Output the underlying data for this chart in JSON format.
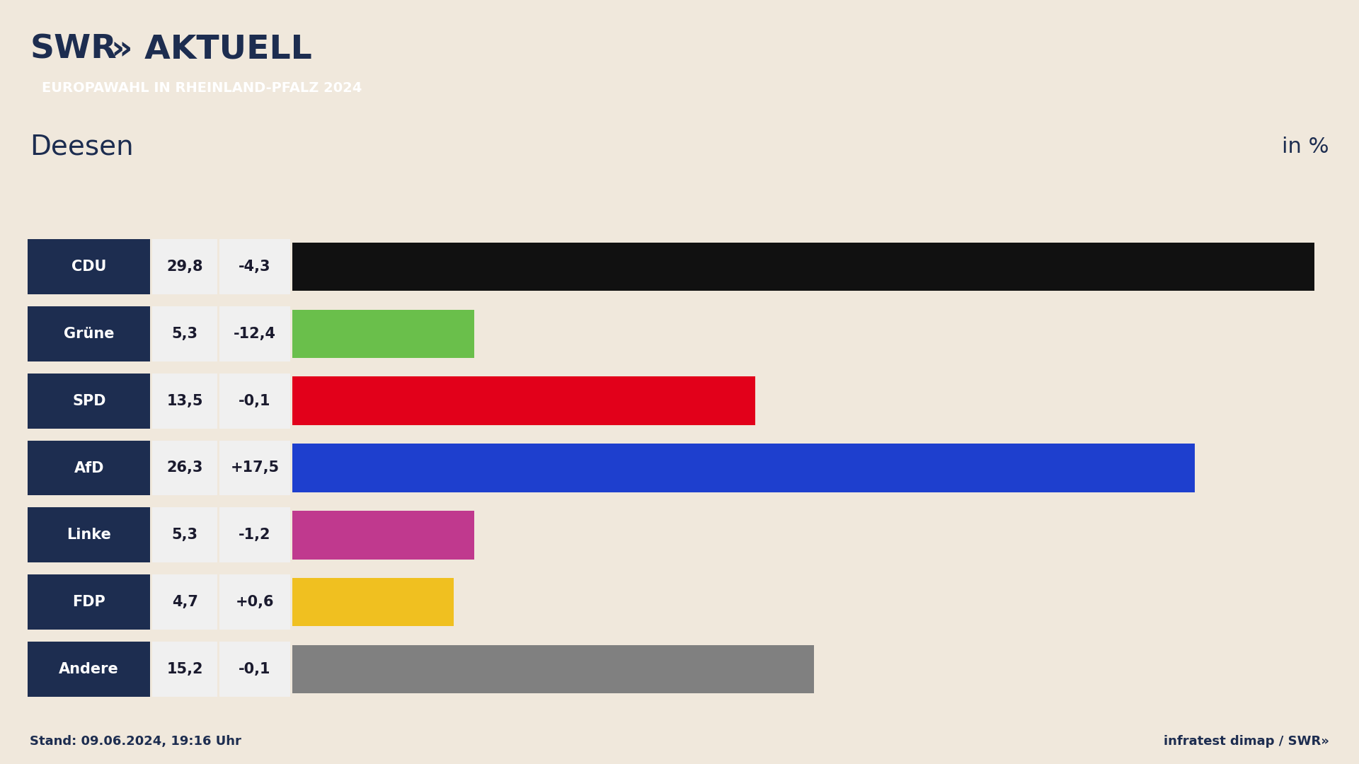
{
  "bg_color": "#f0e8dc",
  "title_location": "Deesen",
  "subtitle": "EUROPAWAHL IN RHEINLAND-PFALZ 2024",
  "subtitle_bg": "#e8503a",
  "subtitle_fg": "#ffffff",
  "in_percent_label": "in %",
  "swr_text1": "SWR",
  "swr_text2": "» AKTUELL",
  "stand_label": "Stand: 09.06.2024, 19:16 Uhr",
  "infratest_label": "infratest dimap / SWR»",
  "parties": [
    "CDU",
    "Grüne",
    "SPD",
    "AfD",
    "Linke",
    "FDP",
    "Andere"
  ],
  "values": [
    29.8,
    5.3,
    13.5,
    26.3,
    5.3,
    4.7,
    15.2
  ],
  "values_display": [
    "29,8",
    "5,3",
    "13,5",
    "26,3",
    "5,3",
    "4,7",
    "15,2"
  ],
  "changes": [
    "-4,3",
    "-12,4",
    "-0,1",
    "+17,5",
    "-1,2",
    "+0,6",
    "-0,1"
  ],
  "bar_colors": [
    "#111111",
    "#6abf4b",
    "#e2001a",
    "#1e3fce",
    "#c0398e",
    "#f0c020",
    "#808080"
  ],
  "party_box_color": "#1d2d50",
  "party_text_color": "#ffffff",
  "value_box_color": "#f0f0f0",
  "value_text_color": "#1a1a2e",
  "header_color": "#1d2d50",
  "footer_color": "#1d2d50",
  "location_color": "#1d2d50",
  "max_value": 30.3,
  "figsize": [
    19.2,
    10.8
  ],
  "dpi": 100
}
